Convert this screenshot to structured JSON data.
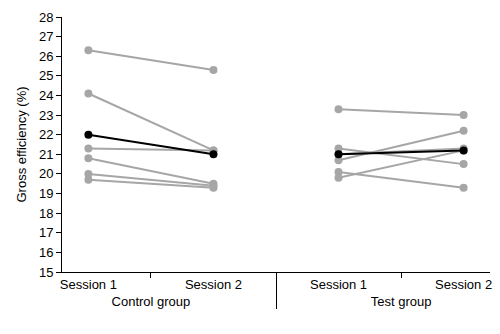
{
  "chart_data": {
    "type": "line",
    "y_label": "Gross efficiency (%)",
    "ylim": [
      15,
      28
    ],
    "yticks": [
      15,
      16,
      17,
      18,
      19,
      20,
      21,
      22,
      23,
      24,
      25,
      26,
      27,
      28
    ],
    "grid": false,
    "marker": "circle",
    "groups": [
      {
        "name": "Control group",
        "categories": [
          "Session 1",
          "Session 2"
        ],
        "series": [
          {
            "color": "#a6a6a6",
            "values": [
              26.3,
              25.3
            ]
          },
          {
            "color": "#a6a6a6",
            "values": [
              24.1,
              21.2
            ]
          },
          {
            "color": "#a6a6a6",
            "values": [
              21.3,
              21.2
            ]
          },
          {
            "color": "#a6a6a6",
            "values": [
              20.8,
              19.5
            ]
          },
          {
            "color": "#a6a6a6",
            "values": [
              20.0,
              19.4
            ]
          },
          {
            "color": "#a6a6a6",
            "values": [
              19.7,
              19.3
            ]
          },
          {
            "color": "#000000",
            "values": [
              22.0,
              21.0
            ]
          }
        ]
      },
      {
        "name": "Test group",
        "categories": [
          "Session 1",
          "Session 2"
        ],
        "series": [
          {
            "color": "#a6a6a6",
            "values": [
              23.3,
              23.0
            ]
          },
          {
            "color": "#a6a6a6",
            "values": [
              21.3,
              20.5
            ]
          },
          {
            "color": "#a6a6a6",
            "values": [
              21.0,
              21.3
            ]
          },
          {
            "color": "#a6a6a6",
            "values": [
              20.7,
              22.2
            ]
          },
          {
            "color": "#a6a6a6",
            "values": [
              20.1,
              19.3
            ]
          },
          {
            "color": "#a6a6a6",
            "values": [
              19.8,
              21.2
            ]
          },
          {
            "color": "#000000",
            "values": [
              21.0,
              21.2
            ]
          }
        ]
      }
    ]
  }
}
